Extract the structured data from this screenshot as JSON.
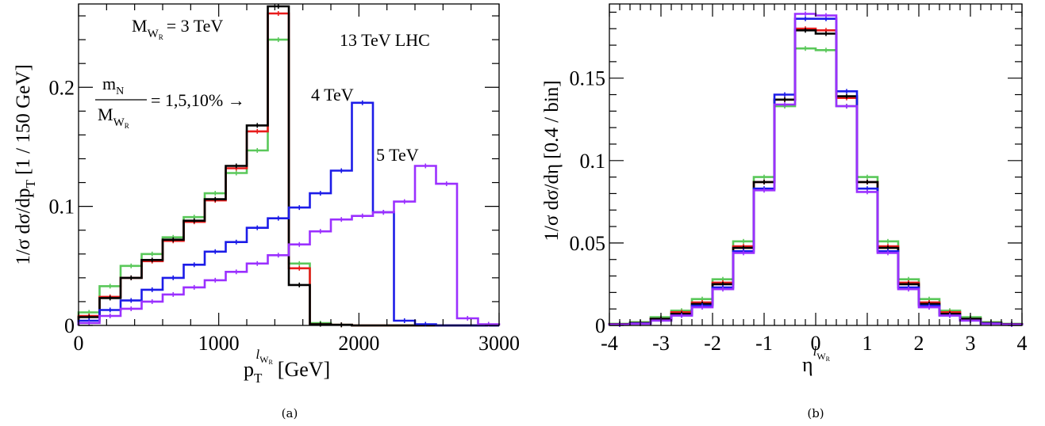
{
  "chart_data": [
    {
      "id": "a",
      "type": "line",
      "step": true,
      "caption": "(a)",
      "ylabel": "1/σ dσ/dp",
      "ylabel_sub": "T",
      "ylabel_unit": "[1 / 150 GeV]",
      "xlabel_main": "p",
      "xlabel_sub": "T",
      "xlabel_sup": "l",
      "xlabel_sup_sub": "W",
      "xlabel_sup_sub2": "R",
      "xlabel_unit": "[GeV]",
      "xlim": [
        0,
        3000
      ],
      "ylim": [
        0,
        0.27
      ],
      "xticks": [
        0,
        1000,
        2000,
        3000
      ],
      "xtick_labels": [
        "0",
        "1000",
        "2000",
        "3000"
      ],
      "yticks": [
        0,
        0.1,
        0.2
      ],
      "ytick_labels": [
        "0",
        "0.1",
        "0.2"
      ],
      "bin_edges": [
        0,
        150,
        300,
        450,
        600,
        750,
        900,
        1050,
        1200,
        1350,
        1500,
        1650,
        1800,
        1950,
        2100,
        2250,
        2400,
        2550,
        2700,
        2850,
        3000
      ],
      "annotations": {
        "mass3_main": "M",
        "mass3_sub": "W",
        "mass3_sub2": "R",
        "mass3_rest": "= 3 TeV",
        "collider": "13 TeV LHC",
        "frac_num": "m",
        "frac_num_sub": "N",
        "frac_den": "M",
        "frac_den_sub": "W",
        "frac_den_sub2": "R",
        "frac_rhs": "= 1,5,10% →",
        "mass4": "4 TeV",
        "mass5": "5 TeV"
      },
      "series": [
        {
          "color": "#5ac85a",
          "values": [
            0.011,
            0.033,
            0.05,
            0.06,
            0.074,
            0.091,
            0.111,
            0.128,
            0.147,
            0.24,
            0.052,
            0.002,
            0.0005,
            0,
            0,
            0,
            0,
            0,
            0,
            0
          ]
        },
        {
          "color": "#e81c1c",
          "values": [
            0.008,
            0.024,
            0.04,
            0.054,
            0.071,
            0.087,
            0.105,
            0.132,
            0.163,
            0.262,
            0.048,
            0.001,
            0.0005,
            0,
            0,
            0,
            0,
            0,
            0,
            0
          ]
        },
        {
          "color": "#000000",
          "values": [
            0.007,
            0.023,
            0.04,
            0.055,
            0.072,
            0.088,
            0.106,
            0.134,
            0.168,
            0.268,
            0.034,
            0.001,
            0.0005,
            0,
            0,
            0,
            0,
            0,
            0,
            0
          ]
        },
        {
          "color": "#1c1ce8",
          "values": [
            0.004,
            0.013,
            0.021,
            0.03,
            0.04,
            0.051,
            0.062,
            0.07,
            0.082,
            0.09,
            0.099,
            0.111,
            0.13,
            0.187,
            0.095,
            0.004,
            0.001,
            0,
            0,
            0
          ]
        },
        {
          "color": "#9b30ff",
          "values": [
            0.002,
            0.008,
            0.014,
            0.02,
            0.026,
            0.032,
            0.038,
            0.045,
            0.052,
            0.059,
            0.068,
            0.079,
            0.089,
            0.092,
            0.095,
            0.104,
            0.134,
            0.119,
            0.006,
            0.001
          ]
        }
      ]
    },
    {
      "id": "b",
      "type": "line",
      "step": true,
      "caption": "(b)",
      "ylabel": "1/σ dσ/dη  [0.4 / bin]",
      "xlabel_main": "η",
      "xlabel_sup": "l",
      "xlabel_sup_sub": "W",
      "xlabel_sup_sub2": "R",
      "xlim": [
        -4,
        4
      ],
      "ylim": [
        0,
        0.195
      ],
      "xticks": [
        -4,
        -3,
        -2,
        -1,
        0,
        1,
        2,
        3,
        4
      ],
      "xtick_labels": [
        "-4",
        "-3",
        "-2",
        "-1",
        "0",
        "1",
        "2",
        "3",
        "4"
      ],
      "yticks": [
        0,
        0.05,
        0.1,
        0.15
      ],
      "ytick_labels": [
        "0",
        "0.05",
        "0.1",
        "0.15"
      ],
      "bin_edges": [
        -4.0,
        -3.6,
        -3.2,
        -2.8,
        -2.4,
        -2.0,
        -1.6,
        -1.2,
        -0.8,
        -0.4,
        0.0,
        0.4,
        0.8,
        1.2,
        1.6,
        2.0,
        2.4,
        2.8,
        3.2,
        3.6,
        4.0
      ],
      "series": [
        {
          "color": "#5ac85a",
          "values": [
            0.001,
            0.002,
            0.005,
            0.009,
            0.016,
            0.028,
            0.051,
            0.09,
            0.133,
            0.168,
            0.167,
            0.133,
            0.09,
            0.051,
            0.028,
            0.016,
            0.009,
            0.005,
            0.002,
            0.001
          ]
        },
        {
          "color": "#e81c1c",
          "values": [
            0.0008,
            0.0015,
            0.004,
            0.008,
            0.014,
            0.026,
            0.048,
            0.087,
            0.137,
            0.18,
            0.179,
            0.138,
            0.087,
            0.048,
            0.026,
            0.014,
            0.008,
            0.004,
            0.0015,
            0.0008
          ]
        },
        {
          "color": "#000000",
          "values": [
            0.0007,
            0.0014,
            0.004,
            0.007,
            0.013,
            0.025,
            0.047,
            0.087,
            0.137,
            0.179,
            0.177,
            0.139,
            0.087,
            0.047,
            0.025,
            0.013,
            0.007,
            0.004,
            0.0014,
            0.0007
          ]
        },
        {
          "color": "#1c1ce8",
          "values": [
            0.0006,
            0.0012,
            0.003,
            0.006,
            0.012,
            0.023,
            0.045,
            0.083,
            0.14,
            0.186,
            0.186,
            0.142,
            0.083,
            0.045,
            0.023,
            0.012,
            0.006,
            0.003,
            0.0012,
            0.0006
          ]
        },
        {
          "color": "#9b30ff",
          "values": [
            0.0005,
            0.001,
            0.003,
            0.006,
            0.011,
            0.022,
            0.044,
            0.082,
            0.134,
            0.189,
            0.188,
            0.133,
            0.081,
            0.044,
            0.022,
            0.011,
            0.006,
            0.003,
            0.001,
            0.0005
          ]
        }
      ]
    }
  ]
}
